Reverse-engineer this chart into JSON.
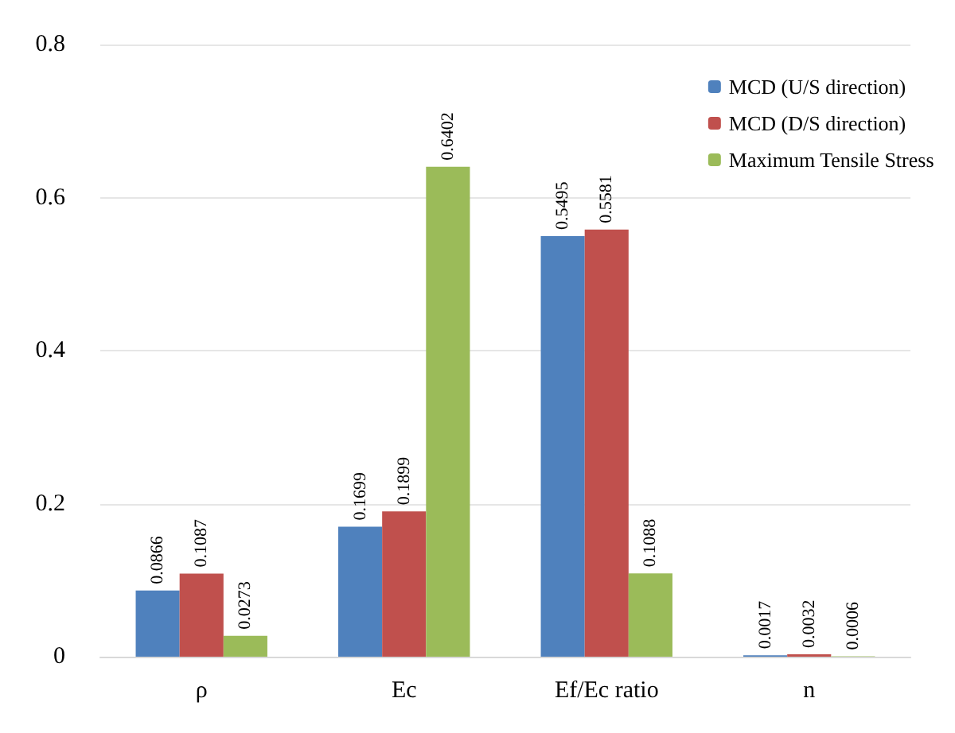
{
  "chart_data": {
    "type": "bar",
    "categories": [
      "ρ",
      "Ec",
      "Ef/Ec ratio",
      "n"
    ],
    "series": [
      {
        "name": "MCD (U/S direction)",
        "color": "#4f81bd",
        "values": [
          0.0866,
          0.1699,
          0.5495,
          0.0017
        ]
      },
      {
        "name": "MCD (D/S direction)",
        "color": "#c0504d",
        "values": [
          0.1087,
          0.1899,
          0.5581,
          0.0032
        ]
      },
      {
        "name": "Maximum Tensile Stress",
        "color": "#9bbb59",
        "values": [
          0.0273,
          0.6402,
          0.1088,
          0.0006
        ]
      }
    ],
    "ylim": [
      0,
      0.8
    ],
    "yticks": [
      0,
      0.2,
      0.4,
      0.6,
      0.8
    ],
    "grid": "y",
    "legend": "top right",
    "data_labels": true
  }
}
